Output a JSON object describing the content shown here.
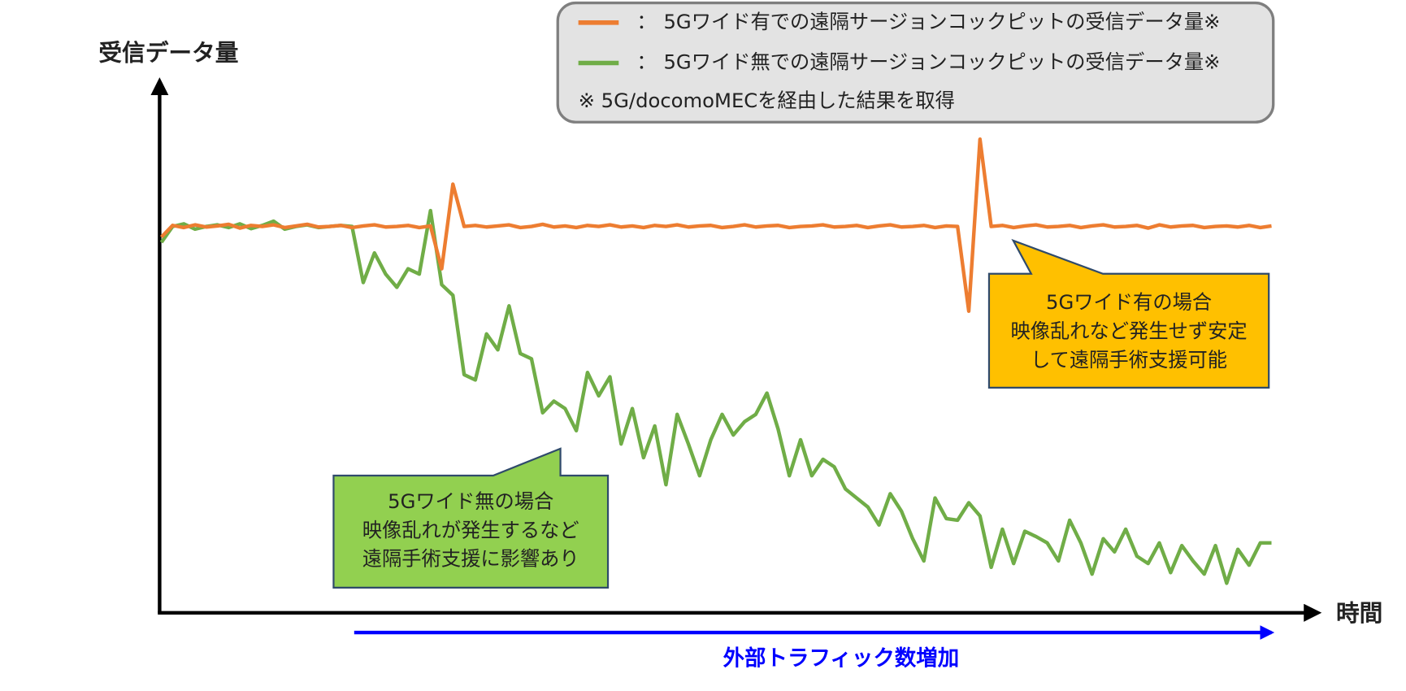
{
  "chart_data": {
    "type": "line",
    "y_label": "受信データ量",
    "x_label": "時間",
    "traffic_label": "外部トラフィック数増加",
    "legend_separator": "：",
    "legend_note": "※ 5G/docomoMECを経由した結果を取得",
    "xlim": [
      0,
      99
    ],
    "ylim": [
      0,
      100
    ],
    "x": [
      0,
      1,
      2,
      3,
      4,
      5,
      6,
      7,
      8,
      9,
      10,
      11,
      12,
      13,
      14,
      15,
      16,
      17,
      18,
      19,
      20,
      21,
      22,
      23,
      24,
      25,
      26,
      27,
      28,
      29,
      30,
      31,
      32,
      33,
      34,
      35,
      36,
      37,
      38,
      39,
      40,
      41,
      42,
      43,
      44,
      45,
      46,
      47,
      48,
      49,
      50,
      51,
      52,
      53,
      54,
      55,
      56,
      57,
      58,
      59,
      60,
      61,
      62,
      63,
      64,
      65,
      66,
      67,
      68,
      69,
      70,
      71,
      72,
      73,
      74,
      75,
      76,
      77,
      78,
      79,
      80,
      81,
      82,
      83,
      84,
      85,
      86,
      87,
      88,
      89,
      90,
      91,
      92,
      93,
      94,
      95,
      96,
      97,
      98,
      99
    ],
    "series": [
      {
        "name": "5Gワイド有での遠隔サージョンコックピットの受信データ量※",
        "color": "#ed7d31",
        "values": [
          71,
          73.2,
          72.8,
          73.3,
          72.9,
          73.1,
          73.4,
          72.7,
          73.2,
          73,
          73.3,
          72.8,
          73.1,
          73.4,
          72.9,
          73,
          73.2,
          72.8,
          73.1,
          73.3,
          72.9,
          73,
          73.2,
          72.8,
          73.1,
          65,
          81,
          73,
          73.2,
          72.9,
          73.1,
          73.3,
          72.8,
          73,
          73.4,
          72.9,
          73.1,
          72.8,
          73.2,
          73,
          73.3,
          72.9,
          73.1,
          72.8,
          73.2,
          73,
          73.3,
          72.9,
          73.1,
          73.2,
          72.8,
          73,
          73.3,
          72.9,
          73.1,
          73.2,
          72.8,
          73,
          73.1,
          73.3,
          72.9,
          73,
          73.2,
          72.8,
          73.1,
          73.3,
          72.9,
          73,
          73.2,
          72.8,
          73.1,
          73,
          57,
          89.5,
          73,
          73.2,
          72.8,
          73.1,
          73.3,
          72.9,
          73,
          73.2,
          72.8,
          73.1,
          73.3,
          72.9,
          73,
          73.2,
          72.7,
          73.3,
          72.9,
          73.1,
          73.2,
          72.8,
          73,
          73.1,
          72.9,
          73.2,
          72.8,
          73.1
        ]
      },
      {
        "name": "5Gワイド無での遠隔サージョンコックピットの受信データ量※",
        "color": "#70ad47",
        "values": [
          70,
          73,
          73.5,
          72.5,
          73,
          73.3,
          72.8,
          73.5,
          72.6,
          73.2,
          74,
          72.5,
          73,
          73.3,
          72.8,
          73,
          73.2,
          73,
          62.4,
          68,
          64,
          61.5,
          65,
          64,
          76,
          62,
          60,
          45,
          44,
          52.7,
          49.7,
          58,
          49,
          48,
          37.8,
          40,
          38.6,
          34.4,
          45.4,
          41,
          44.6,
          31.9,
          38.6,
          29.3,
          35.3,
          24.2,
          37.5,
          31.9,
          25.9,
          32.7,
          37.5,
          33.6,
          36.1,
          37.5,
          41.5,
          34.7,
          25.9,
          32.7,
          25.9,
          29,
          27.6,
          23.4,
          21.7,
          20,
          16.6,
          22.5,
          19.2,
          14,
          9.8,
          21.7,
          17.8,
          17.5,
          20.8,
          18.3,
          8.6,
          15.8,
          9.3,
          15.4,
          14.4,
          13.2,
          9.8,
          17.5,
          13.2,
          7.3,
          14,
          11.5,
          15.8,
          10.7,
          9.3,
          13.2,
          7.6,
          12.7,
          9.8,
          7.3,
          12.7,
          5.6,
          12,
          9,
          13.2,
          13.2
        ]
      }
    ],
    "annotations": [
      {
        "lines": [
          "5Gワイド有の場合",
          "映像乱れなど発生せず安定",
          "して遠隔手術支援可能"
        ]
      },
      {
        "lines": [
          "5Gワイド無の場合",
          "映像乱れが発生するなど",
          "遠隔手術支援に影響あり"
        ]
      }
    ]
  }
}
